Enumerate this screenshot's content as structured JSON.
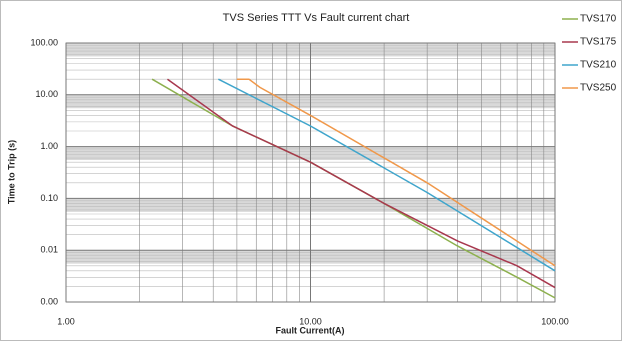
{
  "chart_data": {
    "type": "line",
    "title": "TVS Series TTT Vs Fault current chart",
    "x_label": "Fault Current(A)",
    "y_label": "Time to Trip (s)",
    "x_log": true,
    "y_log": true,
    "grid": true,
    "legend": "right",
    "xlim": [
      1,
      100
    ],
    "xticks": [
      {
        "value": 1,
        "label": "1.00"
      },
      {
        "value": 10,
        "label": "10.00"
      },
      {
        "value": 100,
        "label": "100.00"
      }
    ],
    "ylim": [
      0.001,
      100
    ],
    "yticks": [
      {
        "value": 100,
        "label": "100.00"
      },
      {
        "value": 10,
        "label": "10.00"
      },
      {
        "value": 1,
        "label": "1.00"
      },
      {
        "value": 0.1,
        "label": "0.10"
      },
      0.01,
      {
        "value": 0.001,
        "label": "0.00"
      }
    ],
    "series": [
      {
        "name": "TVS170",
        "color": "#8db04e",
        "x": [
          2.25,
          4.8,
          10,
          20,
          40,
          70,
          100
        ],
        "values": [
          20,
          2.5,
          0.5,
          0.08,
          0.012,
          0.003,
          0.0012
        ]
      },
      {
        "name": "TVS175",
        "color": "#a8384e",
        "x": [
          2.6,
          4.8,
          10,
          20,
          40,
          70,
          100
        ],
        "values": [
          20,
          2.5,
          0.5,
          0.08,
          0.015,
          0.005,
          0.0019
        ]
      },
      {
        "name": "TVS210",
        "color": "#3fa5cc",
        "x": [
          4.2,
          10,
          30,
          100
        ],
        "values": [
          20,
          2.5,
          0.13,
          0.004
        ]
      },
      {
        "name": "TVS250",
        "color": "#f0984a",
        "x": [
          5,
          5.6,
          6.2,
          10,
          30,
          100
        ],
        "values": [
          20,
          20,
          14,
          4,
          0.2,
          0.005
        ]
      }
    ]
  }
}
